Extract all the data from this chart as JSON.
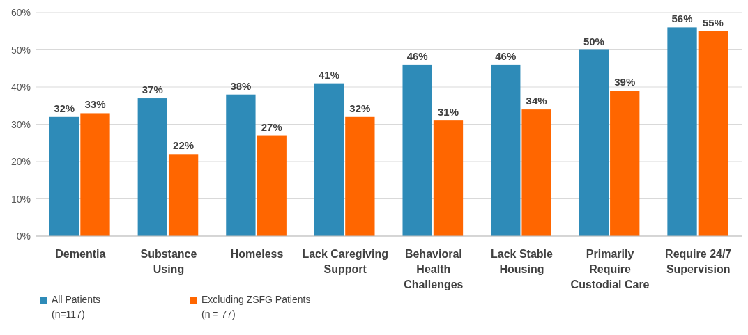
{
  "chart_data": {
    "type": "bar",
    "categories": [
      "Dementia",
      "Substance\nUsing",
      "Homeless",
      "Lack Caregiving\nSupport",
      "Behavioral\nHealth\nChallenges",
      "Lack Stable\nHousing",
      "Primarily\nRequire\nCustodial Care",
      "Require 24/7\nSupervision"
    ],
    "series": [
      {
        "name": "All Patients\n(n=117)",
        "color": "#2e8bb8",
        "values": [
          32,
          37,
          38,
          41,
          46,
          46,
          50,
          56
        ],
        "value_labels": [
          "32%",
          "37%",
          "38%",
          "41%",
          "46%",
          "46%",
          "50%",
          "56%"
        ]
      },
      {
        "name": "Excluding ZSFG Patients\n(n = 77)",
        "color": "#ff6600",
        "values": [
          33,
          22,
          27,
          32,
          31,
          34,
          39,
          55
        ],
        "value_labels": [
          "33%",
          "22%",
          "27%",
          "32%",
          "31%",
          "34%",
          "39%",
          "55%"
        ]
      }
    ],
    "ylim": [
      0,
      60
    ],
    "yticks": [
      {
        "value": 0,
        "label": "0%"
      },
      {
        "value": 10,
        "label": "10%"
      },
      {
        "value": 20,
        "label": "20%"
      },
      {
        "value": 30,
        "label": "30%"
      },
      {
        "value": 40,
        "label": "40%"
      },
      {
        "value": 50,
        "label": "50%"
      },
      {
        "value": 60,
        "label": "60%"
      }
    ],
    "grid": "y",
    "legend": "bottom left"
  }
}
